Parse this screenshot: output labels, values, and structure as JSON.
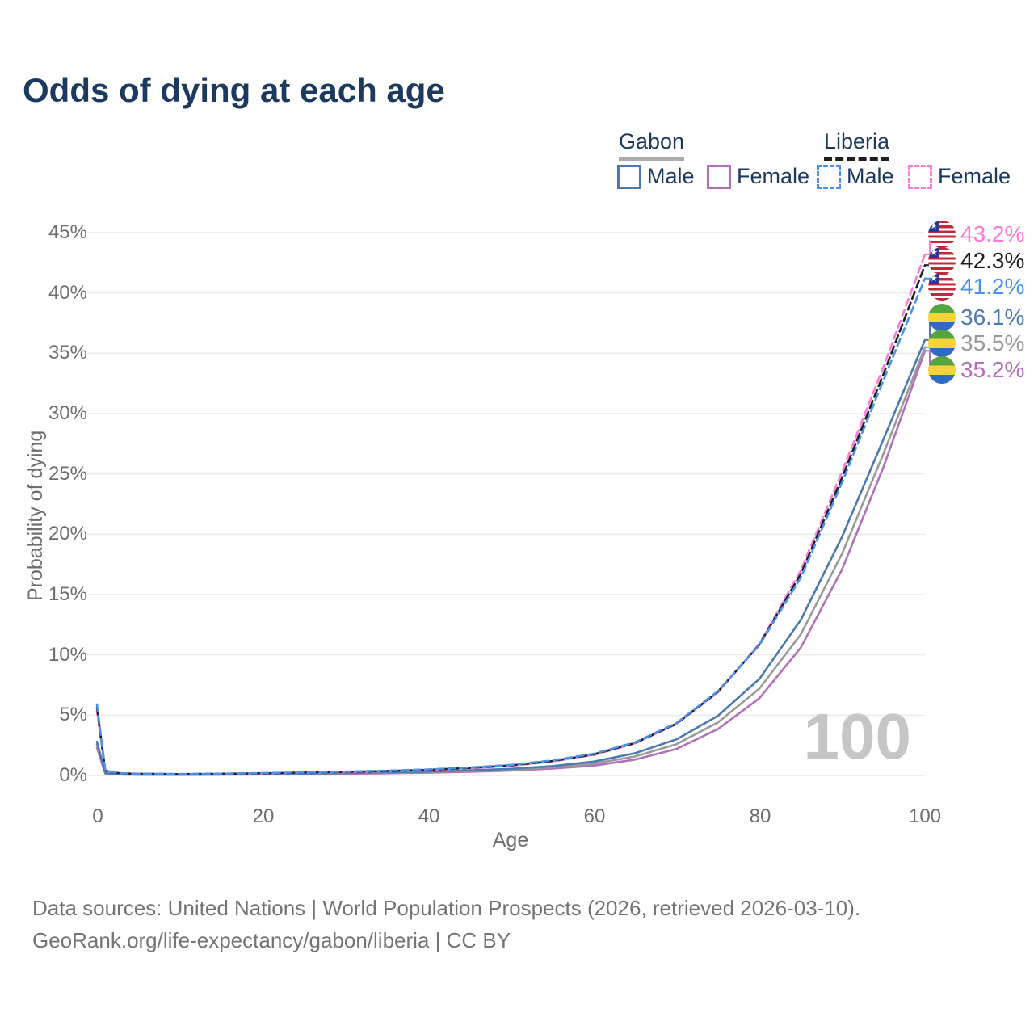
{
  "header": {
    "title": "Odds of dying at each age",
    "title_color": "#1b3a5e"
  },
  "legend": {
    "groups": [
      {
        "name": "Gabon",
        "line_style": "solid",
        "line_color": "#ababab",
        "items": [
          {
            "label": "Male",
            "color": "#4b7ab3"
          },
          {
            "label": "Female",
            "color": "#b26fba"
          }
        ]
      },
      {
        "name": "Liberia",
        "line_style": "dashed",
        "line_color": "#1e1e1e",
        "items": [
          {
            "label": "Male",
            "color": "#4b90ea"
          },
          {
            "label": "Female",
            "color": "#ff7ad9"
          }
        ]
      }
    ]
  },
  "axes": {
    "y_title": "Probability of dying",
    "y_ticks": [
      "45%",
      "40%",
      "35%",
      "30%",
      "25%",
      "20%",
      "15%",
      "10%",
      "5%",
      "0%"
    ],
    "x_ticks": [
      "0",
      "20",
      "40",
      "60",
      "80",
      "100"
    ],
    "x_title": "Age"
  },
  "watermark": "100",
  "end_labels": [
    {
      "value": "43.2%",
      "color": "#ff7ad9",
      "flag": "liberia"
    },
    {
      "value": "42.3%",
      "color": "#1e1e1e",
      "flag": "liberia"
    },
    {
      "value": "41.2%",
      "color": "#4b90ea",
      "flag": "liberia"
    },
    {
      "value": "36.1%",
      "color": "#4b7ab3",
      "flag": "gabon"
    },
    {
      "value": "35.5%",
      "color": "#9a9a9a",
      "flag": "gabon"
    },
    {
      "value": "35.2%",
      "color": "#b26fba",
      "flag": "gabon"
    }
  ],
  "footer": {
    "line1": "Data sources: United Nations | World Population Prospects (2026, retrieved 2026-03-10).",
    "line2": "GeoRank.org/life-expectancy/gabon/liberia | CC BY"
  },
  "chart_data": {
    "type": "line",
    "title": "Odds of dying at each age",
    "xlabel": "Age",
    "ylabel": "Probability of dying",
    "xlim": [
      0,
      100
    ],
    "ylim_percent": [
      0,
      45
    ],
    "grid": "horizontal",
    "legend_position": "top-right",
    "x": [
      0,
      1,
      2,
      3,
      5,
      10,
      15,
      20,
      25,
      30,
      35,
      40,
      45,
      50,
      55,
      60,
      65,
      70,
      75,
      80,
      85,
      90,
      95,
      100
    ],
    "series": [
      {
        "name": "Gabon Female",
        "color": "#b26fba",
        "dashed": false,
        "end_value": 35.2,
        "values": [
          2.3,
          0.16,
          0.11,
          0.08,
          0.07,
          0.06,
          0.07,
          0.09,
          0.12,
          0.15,
          0.18,
          0.23,
          0.3,
          0.41,
          0.57,
          0.82,
          1.32,
          2.2,
          3.85,
          6.4,
          10.6,
          17.1,
          25.6,
          35.2
        ]
      },
      {
        "name": "Gabon Both sexes",
        "color": "#9a9a9a",
        "dashed": false,
        "end_value": 35.5,
        "values": [
          2.6,
          0.18,
          0.12,
          0.09,
          0.075,
          0.065,
          0.08,
          0.11,
          0.14,
          0.18,
          0.22,
          0.28,
          0.36,
          0.48,
          0.67,
          0.98,
          1.58,
          2.6,
          4.4,
          7.2,
          11.7,
          18.4,
          26.7,
          35.5
        ]
      },
      {
        "name": "Gabon Male",
        "color": "#4b7ab3",
        "dashed": false,
        "end_value": 36.1,
        "values": [
          2.8,
          0.2,
          0.13,
          0.1,
          0.08,
          0.07,
          0.09,
          0.13,
          0.17,
          0.21,
          0.26,
          0.33,
          0.42,
          0.55,
          0.78,
          1.15,
          1.85,
          3.0,
          4.95,
          8.0,
          12.9,
          19.8,
          27.9,
          36.1
        ]
      },
      {
        "name": "Liberia Female",
        "color": "#ff7ad9",
        "dashed": true,
        "end_value": 43.2,
        "values": [
          5.4,
          0.38,
          0.24,
          0.16,
          0.14,
          0.11,
          0.13,
          0.17,
          0.22,
          0.28,
          0.35,
          0.45,
          0.59,
          0.8,
          1.16,
          1.7,
          2.66,
          4.27,
          6.9,
          10.9,
          17.0,
          25.2,
          33.9,
          43.2
        ]
      },
      {
        "name": "Liberia Both sexes",
        "color": "#1e1e1e",
        "dashed": true,
        "end_value": 42.3,
        "values": [
          5.65,
          0.4,
          0.25,
          0.17,
          0.14,
          0.115,
          0.14,
          0.18,
          0.24,
          0.3,
          0.37,
          0.47,
          0.62,
          0.84,
          1.2,
          1.75,
          2.7,
          4.3,
          6.95,
          10.85,
          16.7,
          24.7,
          33.3,
          42.3
        ]
      },
      {
        "name": "Liberia Male",
        "color": "#4b90ea",
        "dashed": true,
        "end_value": 41.2,
        "values": [
          5.9,
          0.42,
          0.26,
          0.18,
          0.15,
          0.12,
          0.15,
          0.2,
          0.26,
          0.32,
          0.4,
          0.5,
          0.66,
          0.88,
          1.25,
          1.8,
          2.75,
          4.35,
          7.0,
          10.8,
          16.4,
          24.3,
          32.8,
          41.2
        ]
      }
    ]
  }
}
